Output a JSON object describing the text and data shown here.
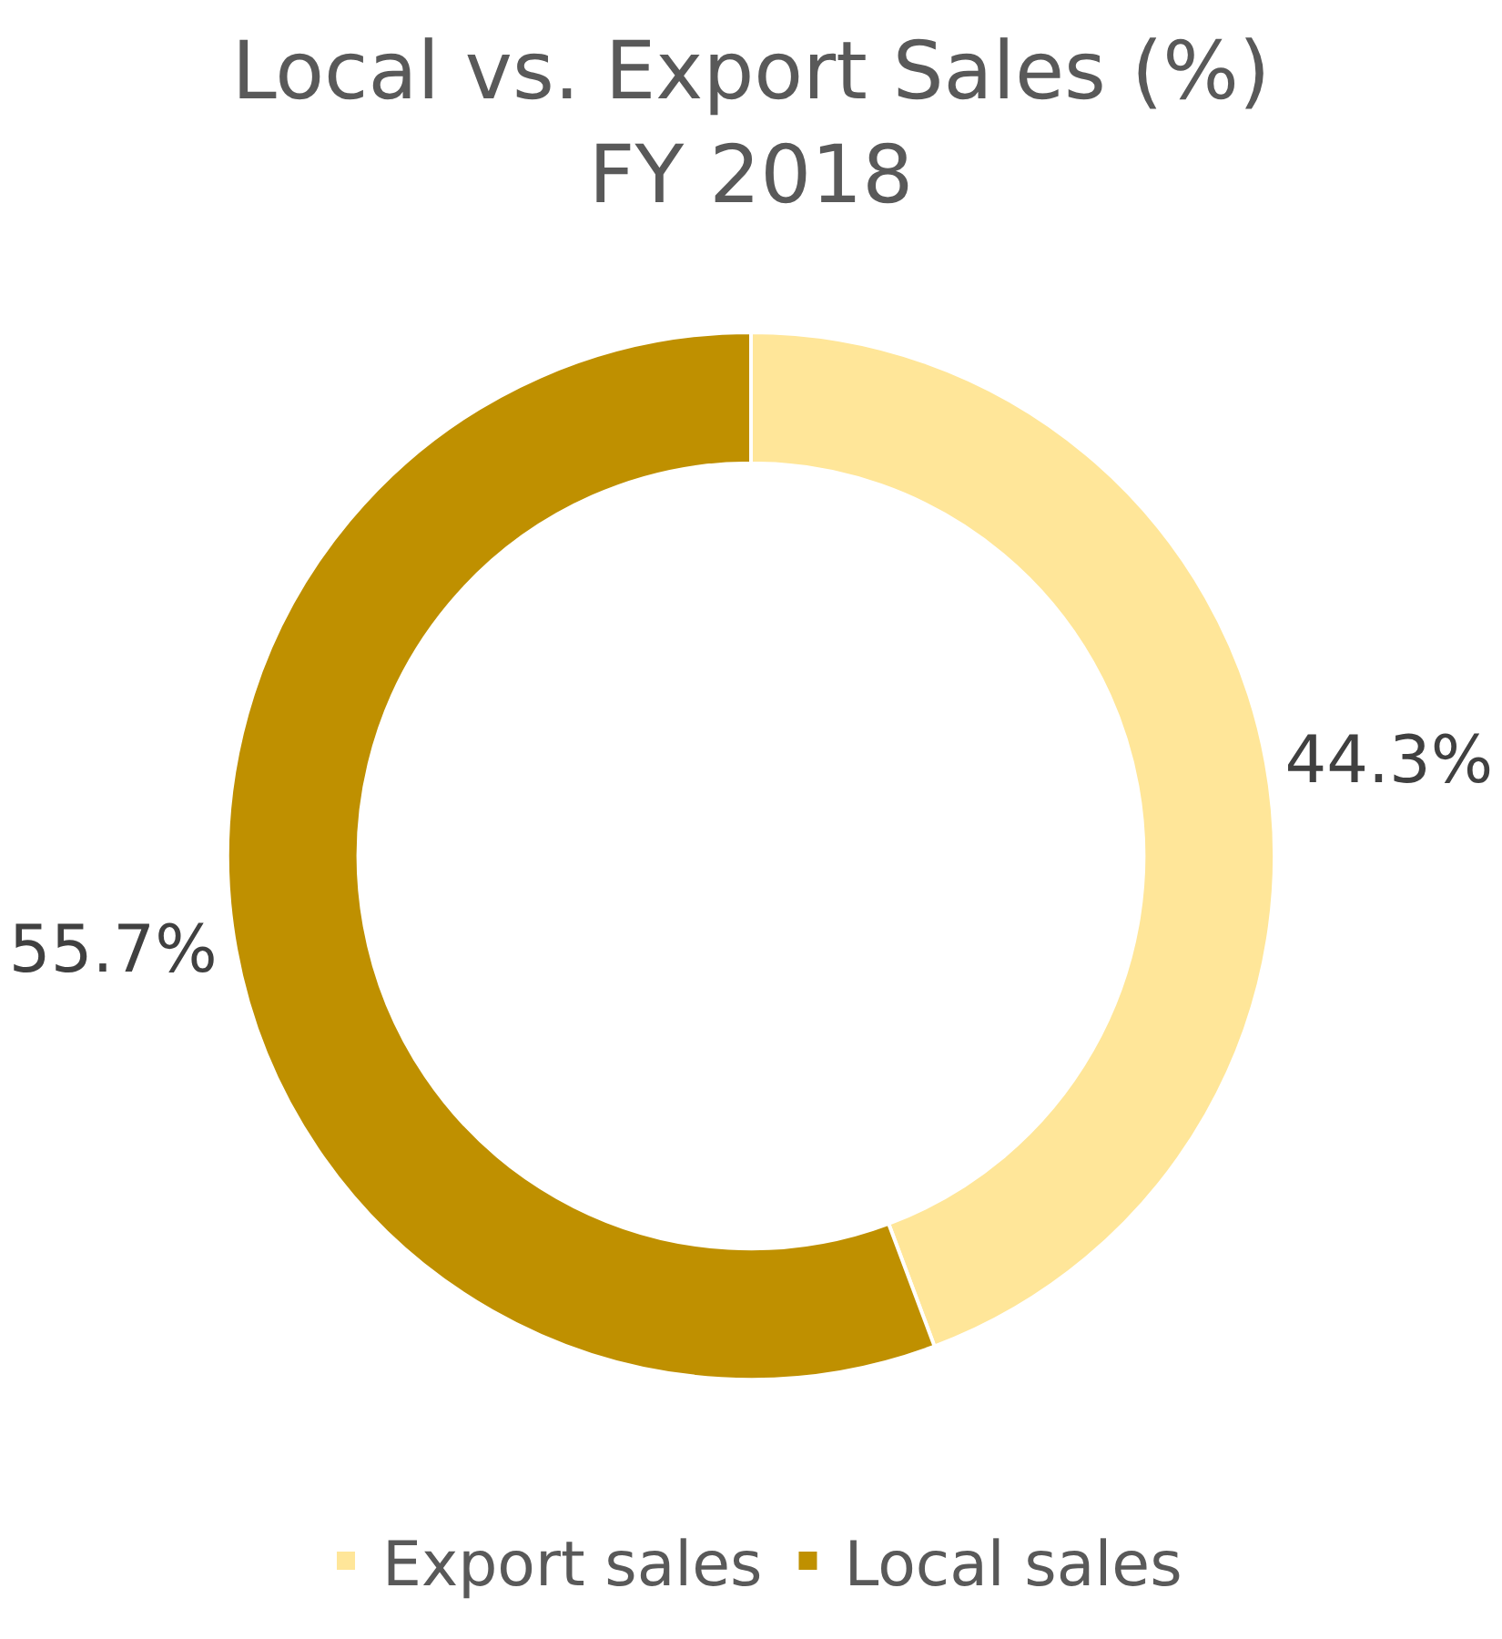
{
  "chart_data": {
    "type": "donut",
    "title": "Local vs. Export Sales (%)\nFY 2018",
    "categories": [
      "Export sales",
      "Local sales"
    ],
    "values": [
      44.3,
      55.7
    ],
    "colors": [
      "#ffe699",
      "#bf9000"
    ],
    "value_labels": [
      "44.3%",
      "55.7%"
    ],
    "legend": "bottom"
  }
}
